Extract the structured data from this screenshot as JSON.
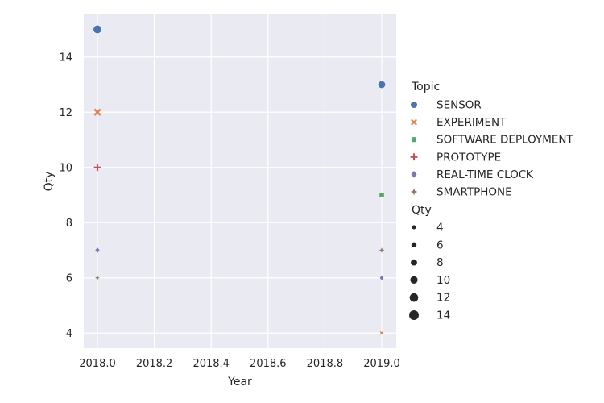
{
  "chart_data": {
    "type": "scatter",
    "xlabel": "Year",
    "ylabel": "Qty",
    "xlim": [
      1999.9,
      2019.06
    ],
    "ylim": [
      3.5,
      15.5
    ],
    "xticks": [
      2018.0,
      2018.2,
      2018.4,
      2018.6,
      2018.8,
      2019.0
    ],
    "xtick_labels": [
      "2018.0",
      "2018.2",
      "2018.4",
      "2018.6",
      "2018.8",
      "2019.0"
    ],
    "yticks": [
      4,
      6,
      8,
      10,
      12,
      14
    ],
    "ytick_labels": [
      "4",
      "6",
      "8",
      "10",
      "12",
      "14"
    ],
    "grid": true,
    "legend_placement": "right",
    "hue_legend_title": "Topic",
    "size_legend_title": "Qty",
    "size_legend_entries": [
      {
        "label": "4",
        "value": 4
      },
      {
        "label": "6",
        "value": 6
      },
      {
        "label": "8",
        "value": 8
      },
      {
        "label": "10",
        "value": 10
      },
      {
        "label": "12",
        "value": 12
      },
      {
        "label": "14",
        "value": 14
      }
    ],
    "series": [
      {
        "name": "SENSOR",
        "marker": "circle",
        "color": "#4c72b0",
        "points": [
          {
            "x": 2018,
            "y": 15
          },
          {
            "x": 2019,
            "y": 13
          }
        ]
      },
      {
        "name": "EXPERIMENT",
        "marker": "x",
        "color": "#dd8452",
        "points": [
          {
            "x": 2018,
            "y": 12
          },
          {
            "x": 2019,
            "y": 4
          }
        ]
      },
      {
        "name": "SOFTWARE DEPLOYMENT",
        "marker": "square",
        "color": "#55a868",
        "points": [
          {
            "x": 2019,
            "y": 9
          }
        ]
      },
      {
        "name": "PROTOTYPE",
        "marker": "plus",
        "color": "#c44e52",
        "points": [
          {
            "x": 2018,
            "y": 10
          }
        ]
      },
      {
        "name": "REAL-TIME CLOCK",
        "marker": "diamond",
        "color": "#8172b3",
        "points": [
          {
            "x": 2018,
            "y": 7
          },
          {
            "x": 2019,
            "y": 6
          }
        ]
      },
      {
        "name": "SMARTPHONE",
        "marker": "star",
        "color": "#937860",
        "points": [
          {
            "x": 2018,
            "y": 6
          },
          {
            "x": 2019,
            "y": 7
          }
        ]
      }
    ]
  },
  "colors": {
    "plot_background": "#eaeaf2",
    "grid": "#ffffff",
    "text": "#262626",
    "size_legend_marker": "#262626"
  }
}
